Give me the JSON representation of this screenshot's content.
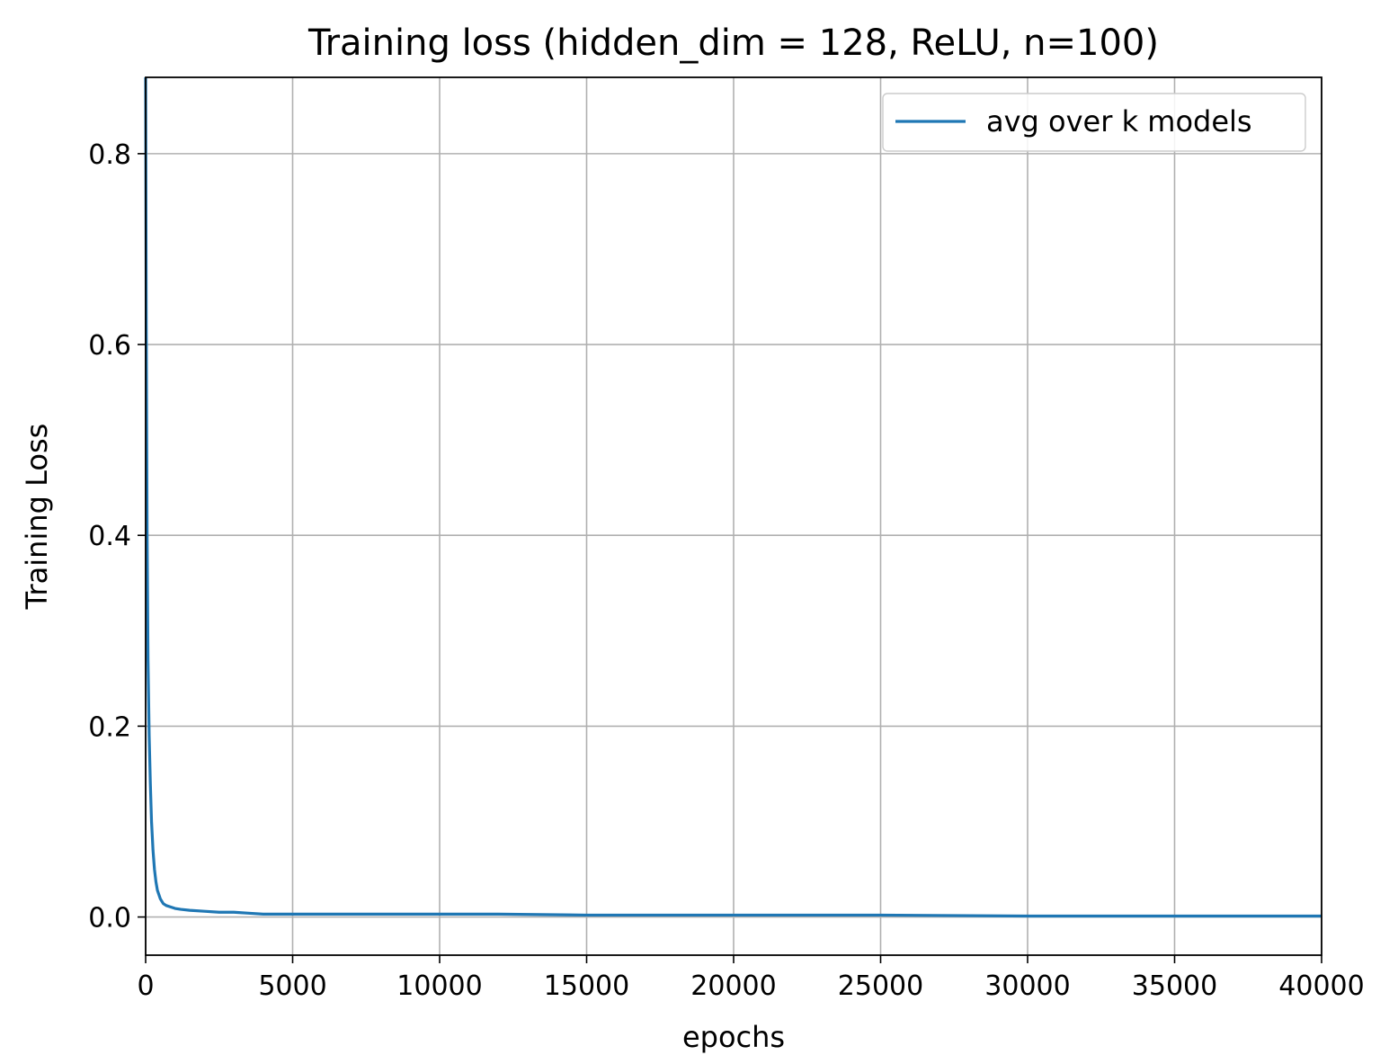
{
  "chart_data": {
    "type": "line",
    "title": "Training loss (hidden_dim = 128, ReLU, n=100)",
    "xlabel": "epochs",
    "ylabel": "Training Loss",
    "xlim": [
      0,
      40000
    ],
    "ylim": [
      -0.04,
      0.88
    ],
    "xticks": [
      0,
      5000,
      10000,
      15000,
      20000,
      25000,
      30000,
      35000,
      40000
    ],
    "xtick_labels": [
      "0",
      "5000",
      "10000",
      "15000",
      "20000",
      "25000",
      "30000",
      "35000",
      "40000"
    ],
    "yticks": [
      0.0,
      0.2,
      0.4,
      0.6,
      0.8
    ],
    "ytick_labels": [
      "0.0",
      "0.2",
      "0.4",
      "0.6",
      "0.8"
    ],
    "grid": true,
    "legend": {
      "position": "upper right"
    },
    "series": [
      {
        "name": "avg over k models",
        "color": "#1f77b4",
        "x": [
          0,
          20,
          50,
          80,
          120,
          160,
          200,
          250,
          300,
          350,
          400,
          500,
          600,
          700,
          800,
          1000,
          1200,
          1500,
          2000,
          2500,
          3000,
          3500,
          4000,
          5000,
          6000,
          8000,
          10000,
          12000,
          15000,
          18000,
          20000,
          25000,
          30000,
          35000,
          40000
        ],
        "y": [
          0.88,
          0.62,
          0.4,
          0.27,
          0.19,
          0.14,
          0.1,
          0.07,
          0.05,
          0.037,
          0.028,
          0.019,
          0.014,
          0.012,
          0.011,
          0.009,
          0.008,
          0.007,
          0.006,
          0.005,
          0.005,
          0.004,
          0.003,
          0.003,
          0.003,
          0.003,
          0.003,
          0.003,
          0.002,
          0.002,
          0.002,
          0.002,
          0.001,
          0.001,
          0.001
        ]
      }
    ]
  }
}
